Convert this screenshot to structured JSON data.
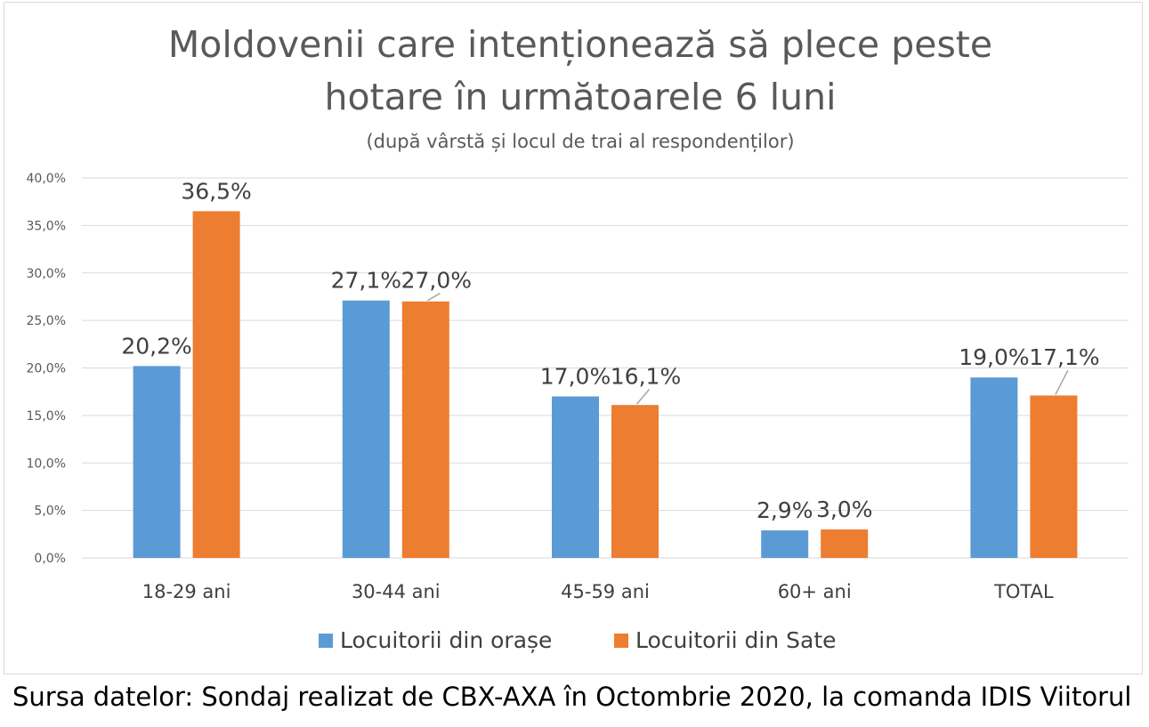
{
  "chart_data": {
    "type": "bar",
    "title_line1": "Moldovenii care intenționează să plece peste",
    "title_line2": "hotare în următoarele 6 luni",
    "subtitle": "(după vârstă și locul de trai al respondenților)",
    "categories": [
      "18-29 ani",
      "30-44 ani",
      "45-59 ani",
      "60+ ani",
      "TOTAL"
    ],
    "series": [
      {
        "name": "Locuitorii din orașe",
        "color": "#5b9bd5",
        "values": [
          20.2,
          27.1,
          17.0,
          2.9,
          19.0
        ],
        "labels": [
          "20,2%",
          "27,1%",
          "17,0%",
          "2,9%",
          "19,0%"
        ]
      },
      {
        "name": "Locuitorii din Sate",
        "color": "#ed7d31",
        "values": [
          36.5,
          27.0,
          16.1,
          3.0,
          17.1
        ],
        "labels": [
          "36,5%",
          "27,0%",
          "16,1%",
          "3,0%",
          "17,1%"
        ]
      }
    ],
    "ylim": [
      0,
      40
    ],
    "yticks": [
      0,
      5,
      10,
      15,
      20,
      25,
      30,
      35,
      40
    ],
    "ytick_labels": [
      "0,0%",
      "5,0%",
      "10,0%",
      "15,0%",
      "20,0%",
      "25,0%",
      "30,0%",
      "35,0%",
      "40,0%"
    ],
    "grid": true,
    "legend": "bottom"
  },
  "footer": {
    "source": "Sursa datelor: Sondaj realizat de CBX-AXA în Octombrie 2020, la comanda IDIS Viitorul"
  }
}
